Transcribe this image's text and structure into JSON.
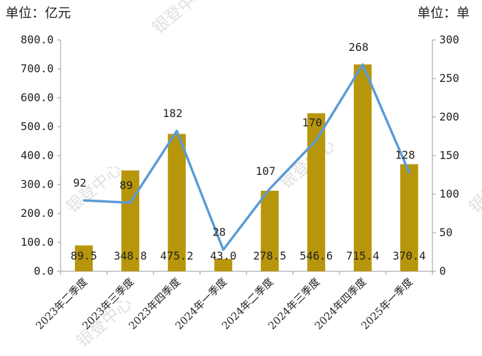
{
  "units": {
    "left": "单位：亿元",
    "right": "单位：单"
  },
  "watermark": "银登中心",
  "colors": {
    "bar": "#B8960C",
    "line": "#5B9BD5",
    "axis": "#999999",
    "text": "#222222"
  },
  "chart_data": {
    "type": "bar+line",
    "categories": [
      "2023年二季度",
      "2023年三季度",
      "2023年四季度",
      "2024年一季度",
      "2024年二季度",
      "2024年三季度",
      "2024年四季度",
      "2025年一季度"
    ],
    "series": [
      {
        "type": "bar",
        "axis": "left",
        "values": [
          89.5,
          348.8,
          475.2,
          43.0,
          278.5,
          546.6,
          715.4,
          370.4
        ],
        "labels": [
          "89.5",
          "348.8",
          "475.2",
          "43.0",
          "278.5",
          "546.6",
          "715.4",
          "370.4"
        ]
      },
      {
        "type": "line",
        "axis": "right",
        "values": [
          92,
          89,
          182,
          28,
          107,
          170,
          268,
          128
        ],
        "labels": [
          "92",
          "89",
          "182",
          "28",
          "107",
          "170",
          "268",
          "128"
        ]
      }
    ],
    "left_axis": {
      "ylim": [
        0,
        800
      ],
      "ticks": [
        "0.0",
        "100.0",
        "200.0",
        "300.0",
        "400.0",
        "500.0",
        "600.0",
        "700.0",
        "800.0"
      ]
    },
    "right_axis": {
      "ylim": [
        0,
        300
      ],
      "ticks": [
        "0",
        "50",
        "100",
        "150",
        "200",
        "250",
        "300"
      ]
    },
    "grid": false,
    "legend": "none"
  }
}
